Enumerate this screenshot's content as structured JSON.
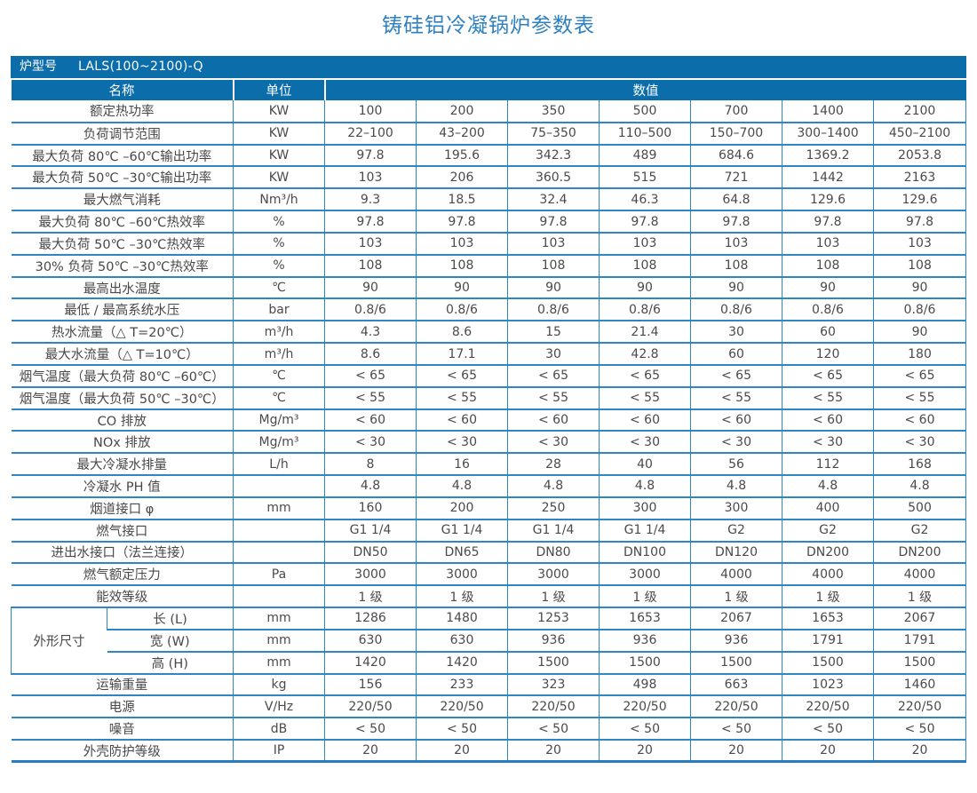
{
  "page_title": "铸硅铝冷凝锅炉参数表",
  "colors": {
    "header_blue": "#0c6dab",
    "border_blue": "#2e86c4",
    "title_blue": "#2e80c0",
    "body_text_gray": "#4a4a4a"
  },
  "table": {
    "model_label": "炉型号",
    "model_value": "LALS(100~2100)-Q",
    "headers": {
      "name": "名称",
      "unit": "单位",
      "value": "数值"
    },
    "rows": [
      {
        "name": "额定热功率",
        "unit": "KW",
        "values": [
          "100",
          "200",
          "350",
          "500",
          "700",
          "1400",
          "2100"
        ]
      },
      {
        "name": "负荷调节范围",
        "unit": "KW",
        "values": [
          "22–100",
          "43–200",
          "75–350",
          "110–500",
          "150–700",
          "300–1400",
          "450–2100"
        ]
      },
      {
        "name": "最大负荷 80℃ –60℃输出功率",
        "unit": "KW",
        "values": [
          "97.8",
          "195.6",
          "342.3",
          "489",
          "684.6",
          "1369.2",
          "2053.8"
        ]
      },
      {
        "name": "最大负荷 50℃ –30℃输出功率",
        "unit": "KW",
        "values": [
          "103",
          "206",
          "360.5",
          "515",
          "721",
          "1442",
          "2163"
        ]
      },
      {
        "name": "最大燃气消耗",
        "unit": "Nm³/h",
        "values": [
          "9.3",
          "18.5",
          "32.4",
          "46.3",
          "64.8",
          "129.6",
          "129.6"
        ]
      },
      {
        "name": "最大负荷 80℃ –60℃热效率",
        "unit": "%",
        "values": [
          "97.8",
          "97.8",
          "97.8",
          "97.8",
          "97.8",
          "97.8",
          "97.8"
        ]
      },
      {
        "name": "最大负荷 50℃ –30℃热效率",
        "unit": "%",
        "values": [
          "103",
          "103",
          "103",
          "103",
          "103",
          "103",
          "103"
        ]
      },
      {
        "name": "30% 负荷 50℃ –30℃热效率",
        "unit": "%",
        "values": [
          "108",
          "108",
          "108",
          "108",
          "108",
          "108",
          "108"
        ]
      },
      {
        "name": "最高出水温度",
        "unit": "℃",
        "values": [
          "90",
          "90",
          "90",
          "90",
          "90",
          "90",
          "90"
        ]
      },
      {
        "name": "最低 / 最高系统水压",
        "unit": "bar",
        "values": [
          "0.8/6",
          "0.8/6",
          "0.8/6",
          "0.8/6",
          "0.8/6",
          "0.8/6",
          "0.8/6"
        ]
      },
      {
        "name": "热水流量（△ T=20℃）",
        "unit": "m³/h",
        "values": [
          "4.3",
          "8.6",
          "15",
          "21.4",
          "30",
          "60",
          "90"
        ]
      },
      {
        "name": "最大水流量（△ T=10℃）",
        "unit": "m³/h",
        "values": [
          "8.6",
          "17.1",
          "30",
          "42.8",
          "60",
          "120",
          "180"
        ]
      },
      {
        "name": "烟气温度（最大负荷 80℃ –60℃）",
        "unit": "℃",
        "values": [
          "< 65",
          "< 65",
          "< 65",
          "< 65",
          "< 65",
          "< 65",
          "< 65"
        ]
      },
      {
        "name": "烟气温度（最大负荷 50℃ –30℃）",
        "unit": "℃",
        "values": [
          "< 55",
          "< 55",
          "< 55",
          "< 55",
          "< 55",
          "< 55",
          "< 55"
        ]
      },
      {
        "name": "CO 排放",
        "unit": "Mg/m³",
        "values": [
          "< 60",
          "< 60",
          "< 60",
          "< 60",
          "< 60",
          "< 60",
          "< 60"
        ]
      },
      {
        "name": "NOx 排放",
        "unit": "Mg/m³",
        "values": [
          "< 30",
          "< 30",
          "< 30",
          "< 30",
          "< 30",
          "< 30",
          "< 30"
        ]
      },
      {
        "name": "最大冷凝水排量",
        "unit": "L/h",
        "values": [
          "8",
          "16",
          "28",
          "40",
          "56",
          "112",
          "168"
        ]
      },
      {
        "name": "冷凝水 PH 值",
        "unit": "",
        "values": [
          "4.8",
          "4.8",
          "4.8",
          "4.8",
          "4.8",
          "4.8",
          "4.8"
        ]
      },
      {
        "name": "烟道接口 φ",
        "unit": "mm",
        "values": [
          "160",
          "200",
          "250",
          "300",
          "300",
          "400",
          "500"
        ]
      },
      {
        "name": "燃气接口",
        "unit": "",
        "values": [
          "G1 1/4",
          "G1 1/4",
          "G1 1/4",
          "G1 1/4",
          "G2",
          "G2",
          "G2"
        ]
      },
      {
        "name": "进出水接口（法兰连接）",
        "unit": "",
        "values": [
          "DN50",
          "DN65",
          "DN80",
          "DN100",
          "DN120",
          "DN200",
          "DN200"
        ]
      },
      {
        "name": "燃气额定压力",
        "unit": "Pa",
        "values": [
          "3000",
          "3000",
          "3000",
          "3000",
          "4000",
          "4000",
          "4000"
        ]
      },
      {
        "name": "能效等级",
        "unit": "",
        "values": [
          "1 级",
          "1 级",
          "1 级",
          "1 级",
          "1 级",
          "1 级",
          "1 级"
        ]
      },
      {
        "group_label": "外形尺寸",
        "group_rows": [
          {
            "name": "长 (L)",
            "unit": "mm",
            "values": [
              "1286",
              "1480",
              "1253",
              "1653",
              "2067",
              "1653",
              "2067"
            ]
          },
          {
            "name": "宽 (W)",
            "unit": "mm",
            "values": [
              "630",
              "630",
              "936",
              "936",
              "936",
              "1791",
              "1791"
            ]
          },
          {
            "name": "高 (H)",
            "unit": "mm",
            "values": [
              "1420",
              "1420",
              "1500",
              "1500",
              "1500",
              "1500",
              "1500"
            ]
          }
        ]
      },
      {
        "name": "运输重量",
        "unit": "kg",
        "values": [
          "156",
          "233",
          "323",
          "498",
          "663",
          "1023",
          "1460"
        ]
      },
      {
        "name": "电源",
        "unit": "V/Hz",
        "values": [
          "220/50",
          "220/50",
          "220/50",
          "220/50",
          "220/50",
          "220/50",
          "220/50"
        ]
      },
      {
        "name": "噪音",
        "unit": "dB",
        "values": [
          "< 50",
          "< 50",
          "< 50",
          "< 50",
          "< 50",
          "< 50",
          "< 50"
        ]
      },
      {
        "name": "外壳防护等级",
        "unit": "IP",
        "values": [
          "20",
          "20",
          "20",
          "20",
          "20",
          "20",
          "20"
        ]
      }
    ]
  }
}
